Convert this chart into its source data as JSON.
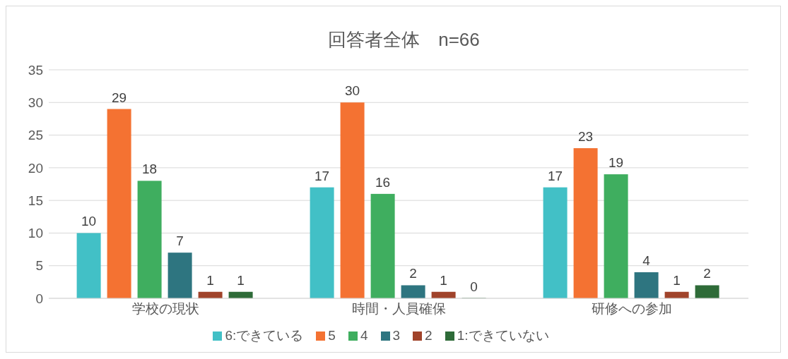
{
  "chart_data": {
    "type": "bar",
    "title": "回答者全体　n=66",
    "categories": [
      "学校の現状",
      "時間・人員確保",
      "研修への参加"
    ],
    "series": [
      {
        "name": "6:できている",
        "color": "#42c0c6",
        "values": [
          10,
          17,
          17
        ]
      },
      {
        "name": "5",
        "color": "#f47232",
        "values": [
          29,
          30,
          23
        ]
      },
      {
        "name": "4",
        "color": "#3fae5f",
        "values": [
          18,
          16,
          19
        ]
      },
      {
        "name": "3",
        "color": "#2e7580",
        "values": [
          7,
          2,
          4
        ]
      },
      {
        "name": "2",
        "color": "#a0432a",
        "values": [
          1,
          1,
          1
        ]
      },
      {
        "name": "1:できていない",
        "color": "#2e6b38",
        "values": [
          1,
          0,
          2
        ]
      }
    ],
    "ylim": [
      0,
      35
    ],
    "yticks": [
      0,
      5,
      10,
      15,
      20,
      25,
      30,
      35
    ],
    "grid": "y",
    "legend": "bottom",
    "data_labels": true
  }
}
